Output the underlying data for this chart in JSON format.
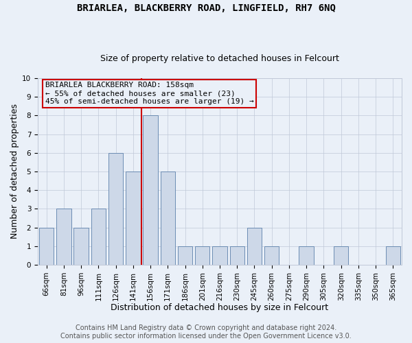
{
  "title": "BRIARLEA, BLACKBERRY ROAD, LINGFIELD, RH7 6NQ",
  "subtitle": "Size of property relative to detached houses in Felcourt",
  "xlabel": "Distribution of detached houses by size in Felcourt",
  "ylabel": "Number of detached properties",
  "categories": [
    "66sqm",
    "81sqm",
    "96sqm",
    "111sqm",
    "126sqm",
    "141sqm",
    "156sqm",
    "171sqm",
    "186sqm",
    "201sqm",
    "216sqm",
    "230sqm",
    "245sqm",
    "260sqm",
    "275sqm",
    "290sqm",
    "305sqm",
    "320sqm",
    "335sqm",
    "350sqm",
    "365sqm"
  ],
  "values": [
    2,
    3,
    2,
    3,
    6,
    5,
    8,
    5,
    1,
    1,
    1,
    1,
    2,
    1,
    0,
    1,
    0,
    1,
    0,
    0,
    1
  ],
  "bar_color": "#cdd8e8",
  "bar_edge_color": "#5b7faa",
  "highlight_index": 6,
  "highlight_line_color": "#cc0000",
  "annotation_line1": "BRIARLEA BLACKBERRY ROAD: 158sqm",
  "annotation_line2": "← 55% of detached houses are smaller (23)",
  "annotation_line3": "45% of semi-detached houses are larger (19) →",
  "annotation_box_color": "#cc0000",
  "ylim": [
    0,
    10
  ],
  "yticks": [
    0,
    1,
    2,
    3,
    4,
    5,
    6,
    7,
    8,
    9,
    10
  ],
  "footer_line1": "Contains HM Land Registry data © Crown copyright and database right 2024.",
  "footer_line2": "Contains public sector information licensed under the Open Government Licence v3.0.",
  "background_color": "#eaf0f8",
  "grid_color": "#c0c8d8",
  "bar_edge_lw": 0.6,
  "title_fontsize": 10,
  "subtitle_fontsize": 9,
  "xlabel_fontsize": 9,
  "ylabel_fontsize": 9,
  "tick_fontsize": 7.5,
  "ann_fontsize": 8,
  "footer_fontsize": 7
}
